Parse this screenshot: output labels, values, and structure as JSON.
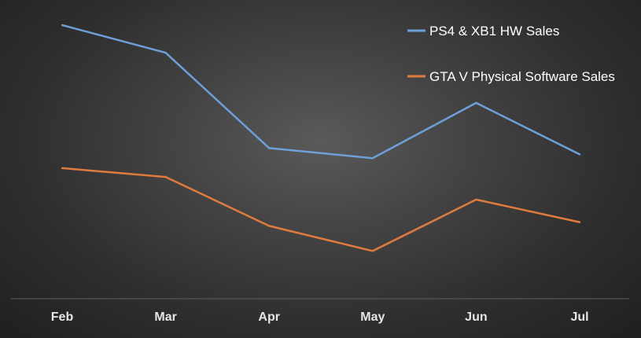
{
  "chart_data": {
    "type": "line",
    "categories": [
      "Feb",
      "Mar",
      "Apr",
      "May",
      "Jun",
      "Jul"
    ],
    "series": [
      {
        "name": "PS4 & XB1 HW Sales",
        "color": "#6f9fd8",
        "values": [
          100,
          89,
          51,
          47,
          69,
          48.5
        ]
      },
      {
        "name": "GTA V Physical Software Sales",
        "color": "#e07b3f",
        "values": [
          43,
          39.5,
          20,
          10,
          30.5,
          21.5
        ]
      }
    ],
    "ylim": [
      -9,
      110
    ],
    "grid": false,
    "legend": "top-right",
    "background": "#3a3a3a"
  }
}
